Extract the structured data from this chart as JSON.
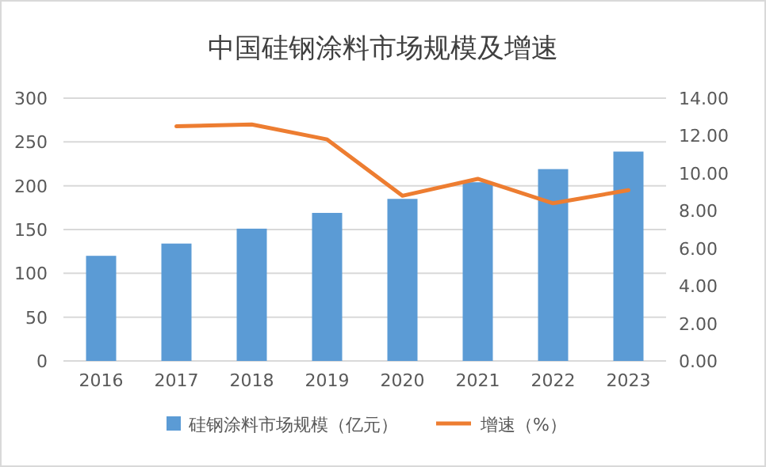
{
  "chart_data": {
    "type": "bar",
    "title": "中国硅钢涂料市场规模及增速",
    "categories": [
      "2016",
      "2017",
      "2018",
      "2019",
      "2020",
      "2021",
      "2022",
      "2023"
    ],
    "series": [
      {
        "name": "硅钢涂料市场规模（亿元）",
        "color": "#5b9bd5",
        "values": [
          120,
          134,
          151,
          169,
          185,
          204,
          219,
          239
        ]
      },
      {
        "name": "增速（%）",
        "type": "line",
        "axis": "y2",
        "color": "#ed7d31",
        "values": [
          null,
          12.5,
          12.6,
          11.8,
          8.8,
          9.7,
          8.4,
          9.1
        ]
      }
    ],
    "ylim": [
      0,
      300
    ],
    "yticks": [
      0,
      50,
      100,
      150,
      200,
      250,
      300
    ],
    "y2lim": [
      0,
      14
    ],
    "y2ticks": [
      {
        "value": 0,
        "label": "0.00"
      },
      {
        "value": 2,
        "label": "2.00"
      },
      {
        "value": 4,
        "label": "4.00"
      },
      {
        "value": 6,
        "label": "6.00"
      },
      {
        "value": 8,
        "label": "8.00"
      },
      {
        "value": 10,
        "label": "10.00"
      },
      {
        "value": 12,
        "label": "12.00"
      },
      {
        "value": 14,
        "label": "14.00"
      }
    ],
    "grid": "y",
    "legend": "bottom",
    "marker": "none",
    "line_style": "solid"
  }
}
